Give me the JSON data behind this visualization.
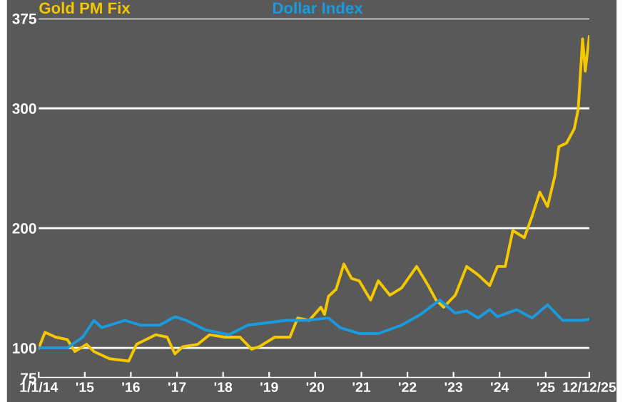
{
  "chart_data": {
    "type": "line",
    "xlim": [
      "2014-01-01",
      "2025-12-12"
    ],
    "xticks": [
      {
        "value": "2014-01-01",
        "label": "1/1/14"
      },
      {
        "value": "2015-01-01",
        "label": "'15"
      },
      {
        "value": "2016-01-01",
        "label": "'16"
      },
      {
        "value": "2017-01-01",
        "label": "'17"
      },
      {
        "value": "2018-01-01",
        "label": "'18"
      },
      {
        "value": "2019-01-01",
        "label": "'19"
      },
      {
        "value": "2020-01-01",
        "label": "'20"
      },
      {
        "value": "2021-01-01",
        "label": "'21"
      },
      {
        "value": "2022-01-01",
        "label": "'22"
      },
      {
        "value": "2023-01-01",
        "label": "'23"
      },
      {
        "value": "2024-01-01",
        "label": "'24"
      },
      {
        "value": "2025-01-01",
        "label": "'25"
      },
      {
        "value": "2025-12-12",
        "label": "12/12/25"
      }
    ],
    "ylim": [
      75,
      375
    ],
    "yticks": [
      75,
      100,
      200,
      300,
      375
    ],
    "grid": "y",
    "series": [
      {
        "name": "Gold PM Fix",
        "color": "#f5c800",
        "x": [
          "2014-01-01",
          "2014-02-20",
          "2014-05",
          "2014-08",
          "2014-10",
          "2015-01",
          "2015-03",
          "2015-07",
          "2015-12",
          "2016-02",
          "2016-07",
          "2016-10",
          "2016-12",
          "2017-02",
          "2017-06",
          "2017-09",
          "2018-01",
          "2018-05",
          "2018-08",
          "2018-10",
          "2019-02",
          "2019-06",
          "2019-08",
          "2019-11",
          "2020-02",
          "2020-03",
          "2020-04",
          "2020-06",
          "2020-08",
          "2020-10",
          "2020-12",
          "2021-03",
          "2021-05",
          "2021-08",
          "2021-11",
          "2022-03",
          "2022-06",
          "2022-08",
          "2022-10",
          "2023-01",
          "2023-04",
          "2023-07",
          "2023-10",
          "2023-12",
          "2024-02",
          "2024-04",
          "2024-07",
          "2024-09",
          "2024-11",
          "2025-01",
          "2025-03",
          "2025-04",
          "2025-06",
          "2025-08",
          "2025-09",
          "2025-10-20",
          "2025-11-10",
          "2025-12-12"
        ],
        "values": [
          100,
          113,
          109,
          107,
          97,
          103,
          97,
          91,
          89,
          103,
          111,
          109,
          95,
          101,
          103,
          111,
          109,
          109,
          99,
          101,
          109,
          109,
          125,
          123,
          134,
          128,
          143,
          149,
          170,
          158,
          156,
          140,
          156,
          144,
          150,
          168,
          152,
          140,
          134,
          144,
          168,
          161,
          152,
          168,
          168,
          198,
          192,
          210,
          230,
          218,
          244,
          268,
          271,
          283,
          299,
          358,
          331,
          360
        ]
      },
      {
        "name": "Dollar Index",
        "color": "#1a9be0",
        "x": [
          "2014-01-01",
          "2014-08",
          "2014-12",
          "2015-03",
          "2015-05",
          "2015-11",
          "2016-03",
          "2016-08",
          "2016-12",
          "2017-03",
          "2017-08",
          "2018-02",
          "2018-07",
          "2019-05",
          "2019-10",
          "2020-04",
          "2020-07",
          "2020-12",
          "2021-05",
          "2021-11",
          "2022-04",
          "2022-09",
          "2023-01",
          "2023-04",
          "2023-07",
          "2023-10",
          "2023-12",
          "2024-05",
          "2024-09",
          "2025-01",
          "2025-05",
          "2025-10",
          "2025-12-12"
        ],
        "values": [
          100,
          100,
          109,
          123,
          117,
          123,
          119,
          119,
          126,
          123,
          115,
          111,
          119,
          123,
          123,
          125,
          117,
          112,
          112,
          119,
          128,
          140,
          129,
          131,
          125,
          132,
          126,
          132,
          125,
          136,
          123,
          123,
          124
        ]
      }
    ]
  }
}
